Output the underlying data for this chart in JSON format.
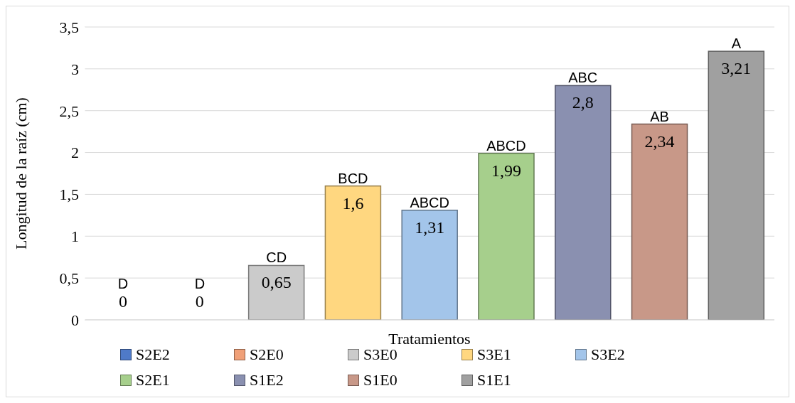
{
  "chart_data": {
    "type": "bar",
    "xlabel": "Tratamientos",
    "ylabel": "Longitud de la raíz (cm)",
    "categories": [
      null,
      null,
      null,
      null,
      null,
      null,
      null,
      null,
      null
    ],
    "series": [
      {
        "name": "S2E2",
        "color": "#4f7ac8",
        "values": [
          0,
          null,
          null,
          null,
          null,
          null,
          null,
          null,
          null
        ],
        "value_labels": [
          "0",
          null,
          null,
          null,
          null,
          null,
          null,
          null,
          null
        ]
      },
      {
        "name": "S2E0",
        "color": "#f0a078",
        "values": [
          null,
          0,
          null,
          null,
          null,
          null,
          null,
          null,
          null
        ],
        "value_labels": [
          null,
          "0",
          null,
          null,
          null,
          null,
          null,
          null,
          null
        ]
      },
      {
        "name": "S3E0",
        "color": "#cbcbcb",
        "values": [
          null,
          null,
          0.65,
          null,
          null,
          null,
          null,
          null,
          null
        ],
        "value_labels": [
          null,
          null,
          "0,65",
          null,
          null,
          null,
          null,
          null,
          null
        ]
      },
      {
        "name": "S3E1",
        "color": "#ffd780",
        "values": [
          null,
          null,
          null,
          1.6,
          null,
          null,
          null,
          null,
          null
        ],
        "value_labels": [
          null,
          null,
          null,
          "1,6",
          null,
          null,
          null,
          null,
          null
        ]
      },
      {
        "name": "S3E2",
        "color": "#a3c5ea",
        "values": [
          null,
          null,
          null,
          null,
          1.31,
          null,
          null,
          null,
          null
        ],
        "value_labels": [
          null,
          null,
          null,
          null,
          "1,31",
          null,
          null,
          null,
          null
        ]
      },
      {
        "name": "S2E1",
        "color": "#a6cf8c",
        "values": [
          null,
          null,
          null,
          null,
          null,
          1.99,
          null,
          null,
          null
        ],
        "value_labels": [
          null,
          null,
          null,
          null,
          null,
          "1,99",
          null,
          null,
          null
        ]
      },
      {
        "name": "S1E2",
        "color": "#8a90b0",
        "values": [
          null,
          null,
          null,
          null,
          null,
          null,
          2.8,
          null,
          null
        ],
        "value_labels": [
          null,
          null,
          null,
          null,
          null,
          null,
          "2,8",
          null,
          null
        ]
      },
      {
        "name": "S1E0",
        "color": "#c89888",
        "values": [
          null,
          null,
          null,
          null,
          null,
          null,
          null,
          2.34,
          null
        ],
        "value_labels": [
          null,
          null,
          null,
          null,
          null,
          null,
          null,
          "2,34",
          null
        ]
      },
      {
        "name": "S1E1",
        "color": "#a0a0a0",
        "values": [
          null,
          null,
          null,
          null,
          null,
          null,
          null,
          null,
          3.21
        ],
        "value_labels": [
          null,
          null,
          null,
          null,
          null,
          null,
          null,
          null,
          "3,21"
        ]
      }
    ],
    "annotations": [
      {
        "text": "D",
        "y": 0
      },
      {
        "text": "D",
        "y": 0
      },
      {
        "text": "CD",
        "y": 0.65
      },
      {
        "text": "BCD",
        "y": 1.6
      },
      {
        "text": "ABCD",
        "y": 1.31
      },
      {
        "text": "ABCD",
        "y": 1.99
      },
      {
        "text": "ABC",
        "y": 2.8
      },
      {
        "text": "AB",
        "y": 2.34
      },
      {
        "text": "A",
        "y": 3.21
      }
    ],
    "ylim": [
      0,
      3.5
    ],
    "yticks": [
      0,
      {
        "value": 0.5,
        "label": "0,5"
      },
      1,
      {
        "value": 1.5,
        "label": "1,5"
      },
      2,
      {
        "value": 2.5,
        "label": "2,5"
      },
      3,
      {
        "value": 3.5,
        "label": "3,5"
      }
    ],
    "grid": "y",
    "legend": "bottom"
  }
}
